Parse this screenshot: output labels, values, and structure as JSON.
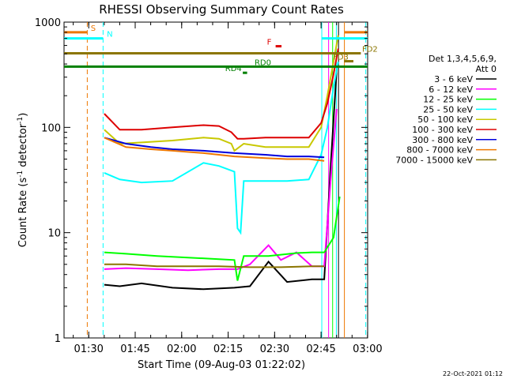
{
  "chart_data": {
    "type": "line",
    "title": "RHESSI Observing Summary Count Rates",
    "xlabel": "Start Time (09-Aug-03 01:22:02)",
    "ylabel_main": "Count Rate (s",
    "ylabel_sup1": "-1",
    "ylabel_mid": " detector",
    "ylabel_sup2": "-1",
    "ylabel_end": ")",
    "x_range_minutes": [
      0,
      98
    ],
    "x_ticks": [
      {
        "label": "01:30",
        "minute": 7.97
      },
      {
        "label": "01:45",
        "minute": 22.97
      },
      {
        "label": "02:00",
        "minute": 37.97
      },
      {
        "label": "02:15",
        "minute": 52.97
      },
      {
        "label": "02:30",
        "minute": 67.97
      },
      {
        "label": "02:45",
        "minute": 82.97
      },
      {
        "label": "03:00",
        "minute": 97.97
      }
    ],
    "y_scale": "log",
    "ylim": [
      1,
      1000
    ],
    "y_ticks": [
      {
        "label": "1",
        "value": 1
      },
      {
        "label": "10",
        "value": 10
      },
      {
        "label": "100",
        "value": 100
      },
      {
        "label": "1000",
        "value": 1000
      }
    ],
    "legend": {
      "placement": "right",
      "header_1": "Det 1,3,4,5,6,9,",
      "header_2": "Att 0"
    },
    "series": [
      {
        "name": "3 - 6 keV",
        "color": "#000000",
        "points": [
          [
            13,
            3.2
          ],
          [
            18,
            3.1
          ],
          [
            25,
            3.3
          ],
          [
            35,
            3.0
          ],
          [
            45,
            2.9
          ],
          [
            55,
            3.0
          ],
          [
            60,
            3.1
          ],
          [
            66,
            5.3
          ],
          [
            72,
            3.4
          ],
          [
            80,
            3.6
          ],
          [
            84,
            3.6
          ],
          [
            86,
            40
          ],
          [
            88,
            350
          ]
        ]
      },
      {
        "name": "6 - 12 keV",
        "color": "#ff00ff",
        "points": [
          [
            13,
            4.5
          ],
          [
            20,
            4.6
          ],
          [
            30,
            4.5
          ],
          [
            40,
            4.4
          ],
          [
            50,
            4.5
          ],
          [
            56,
            4.5
          ],
          [
            60,
            5.0
          ],
          [
            66,
            7.6
          ],
          [
            70,
            5.5
          ],
          [
            75,
            6.5
          ],
          [
            80,
            4.8
          ],
          [
            84,
            4.8
          ],
          [
            86,
            30
          ],
          [
            88,
            150
          ]
        ]
      },
      {
        "name": "12 - 25 keV",
        "color": "#00ff00",
        "points": [
          [
            13,
            6.5
          ],
          [
            20,
            6.3
          ],
          [
            30,
            6.0
          ],
          [
            40,
            5.8
          ],
          [
            50,
            5.6
          ],
          [
            55,
            5.5
          ],
          [
            56,
            3.5
          ],
          [
            58,
            6.0
          ],
          [
            66,
            6.0
          ],
          [
            75,
            6.4
          ],
          [
            80,
            6.5
          ],
          [
            84,
            6.5
          ],
          [
            87,
            9
          ],
          [
            89,
            22
          ]
        ]
      },
      {
        "name": "25 - 50 keV",
        "color": "#00ffff",
        "points": [
          [
            13,
            37
          ],
          [
            18,
            32
          ],
          [
            25,
            30
          ],
          [
            35,
            31
          ],
          [
            45,
            46
          ],
          [
            50,
            43
          ],
          [
            55,
            38
          ],
          [
            56,
            11
          ],
          [
            57,
            10
          ],
          [
            58,
            31
          ],
          [
            65,
            31
          ],
          [
            72,
            31
          ],
          [
            79,
            32
          ],
          [
            83,
            55
          ],
          [
            85,
            100
          ],
          [
            87,
            240
          ],
          [
            88.5,
            420
          ]
        ]
      },
      {
        "name": "50 - 100 keV",
        "color": "#c8c800",
        "points": [
          [
            13,
            95
          ],
          [
            18,
            70
          ],
          [
            25,
            72
          ],
          [
            35,
            75
          ],
          [
            45,
            80
          ],
          [
            50,
            78
          ],
          [
            54,
            70
          ],
          [
            55,
            60
          ],
          [
            58,
            70
          ],
          [
            65,
            65
          ],
          [
            72,
            65
          ],
          [
            79,
            65
          ],
          [
            83,
            100
          ],
          [
            85,
            200
          ],
          [
            87,
            420
          ],
          [
            88.5,
            750
          ]
        ]
      },
      {
        "name": "100 - 300 keV",
        "color": "#dd0000",
        "points": [
          [
            13,
            135
          ],
          [
            18,
            95
          ],
          [
            25,
            95
          ],
          [
            35,
            100
          ],
          [
            45,
            105
          ],
          [
            50,
            103
          ],
          [
            54,
            90
          ],
          [
            56,
            78
          ],
          [
            58,
            78
          ],
          [
            65,
            80
          ],
          [
            72,
            80
          ],
          [
            79,
            80
          ],
          [
            83,
            110
          ],
          [
            85,
            170
          ],
          [
            87,
            320
          ],
          [
            88.5,
            560
          ]
        ]
      },
      {
        "name": "300 - 800 keV",
        "color": "#0000dd",
        "points": [
          [
            13,
            80
          ],
          [
            20,
            70
          ],
          [
            28,
            65
          ],
          [
            35,
            62
          ],
          [
            45,
            60
          ],
          [
            55,
            57
          ],
          [
            65,
            55
          ],
          [
            72,
            53
          ],
          [
            79,
            53
          ],
          [
            84,
            52
          ]
        ]
      },
      {
        "name": "800 - 7000 keV",
        "color": "#ee7700",
        "points": [
          [
            13,
            80
          ],
          [
            20,
            65
          ],
          [
            28,
            62
          ],
          [
            35,
            60
          ],
          [
            45,
            57
          ],
          [
            55,
            53
          ],
          [
            65,
            51
          ],
          [
            72,
            50
          ],
          [
            79,
            50
          ],
          [
            84,
            48
          ]
        ]
      },
      {
        "name": "7000 - 15000 keV",
        "color": "#8b7500",
        "points": [
          [
            13,
            5.0
          ],
          [
            20,
            5.0
          ],
          [
            30,
            4.8
          ],
          [
            40,
            4.8
          ],
          [
            50,
            4.8
          ],
          [
            60,
            4.7
          ],
          [
            70,
            4.7
          ],
          [
            80,
            4.8
          ],
          [
            84,
            4.8
          ]
        ]
      }
    ],
    "flag_bars": [
      {
        "label": "S",
        "color": "#ee7700",
        "value": 800,
        "start": 0,
        "end": 7.5,
        "label_minute": 8.6
      },
      {
        "label": "S",
        "color": "#ee7700",
        "value": 800,
        "start": 90.5,
        "end": 98,
        "label_minute": null
      },
      {
        "label": "N",
        "color": "#00ffff",
        "value": 700,
        "start": 0,
        "end": 12.6,
        "label_minute": 13.8
      },
      {
        "label": "N",
        "color": "#00ffff",
        "value": 700,
        "start": 83.2,
        "end": 98,
        "label_minute": null
      },
      {
        "label": "F",
        "color": "#dd0000",
        "value": 590,
        "start": 68.3,
        "end": 70.2,
        "label_minute": 65.5
      },
      {
        "label": "FD2",
        "color": "#8b7500",
        "value": 505,
        "start": 0,
        "end": 95.8,
        "label_minute": 96.2
      },
      {
        "label": "FD3",
        "color": "#8b7500",
        "value": 425,
        "start": 90.4,
        "end": 93.4,
        "label_minute": 86.8
      },
      {
        "label": "RD0",
        "color": "#008000",
        "value": 378,
        "start": 0,
        "end": 98,
        "label_minute": 61.5
      },
      {
        "label": "RD4",
        "color": "#008000",
        "value": 330,
        "start": 57.7,
        "end": 59.1,
        "label_minute": 52.0
      }
    ],
    "vertical_lines": [
      {
        "minute": 7.5,
        "color": "#ee7700",
        "dashed": true
      },
      {
        "minute": 12.6,
        "color": "#00ffff",
        "dashed": true
      },
      {
        "minute": 83.2,
        "color": "#00ffff",
        "dashed": false
      },
      {
        "minute": 85.4,
        "color": "#ff00ff",
        "dashed": false
      },
      {
        "minute": 86.7,
        "color": "#00ff00",
        "dashed": false
      },
      {
        "minute": 87.9,
        "color": "#00ffff",
        "dashed": false
      },
      {
        "minute": 88.6,
        "color": "#000000",
        "dashed": false
      },
      {
        "minute": 90.5,
        "color": "#ee7700",
        "dashed": false
      },
      {
        "minute": 97.4,
        "color": "#00ffff",
        "dashed": true
      }
    ]
  },
  "footer_timestamp": "22-Oct-2021 01:12"
}
